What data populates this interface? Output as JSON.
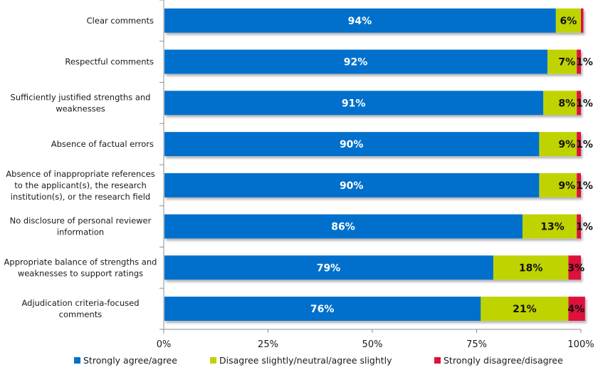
{
  "chart_data": {
    "type": "bar",
    "orientation": "horizontal",
    "stacked": true,
    "title": "",
    "xlabel": "",
    "ylabel": "",
    "xlim": [
      0,
      100
    ],
    "x_ticks": [
      "0%",
      "25%",
      "50%",
      "75%",
      "100%"
    ],
    "x_tick_values": [
      0,
      25,
      50,
      75,
      100
    ],
    "grid": false,
    "legend_position": "bottom",
    "categories": [
      [
        "Clear comments"
      ],
      [
        "Respectful comments"
      ],
      [
        "Sufficiently justified strengths and",
        "weaknesses"
      ],
      [
        "Absence of factual errors"
      ],
      [
        "Absence of inappropriate references",
        "to the applicant(s), the research",
        "institution(s), or the research field"
      ],
      [
        "No disclosure of personal reviewer",
        "information"
      ],
      [
        "Appropriate balance of strengths and",
        "weaknesses to support ratings"
      ],
      [
        "Adjudication criteria-focused",
        "comments"
      ]
    ],
    "series": [
      {
        "name": "Strongly agree/agree",
        "color": "#0070CC",
        "label_color": "#ffffff",
        "values": [
          94,
          92,
          91,
          90,
          90,
          86,
          79,
          76
        ],
        "labels": [
          "94%",
          "92%",
          "91%",
          "90%",
          "90%",
          "86%",
          "79%",
          "76%"
        ]
      },
      {
        "name": "Disagree slightly/neutral/agree slightly",
        "color": "#BFD300",
        "label_color": "#111111",
        "values": [
          6,
          7,
          8,
          9,
          9,
          13,
          18,
          21
        ],
        "labels": [
          "6%",
          "7%",
          "8%",
          "9%",
          "9%",
          "13%",
          "18%",
          "21%"
        ]
      },
      {
        "name": "Strongly disagree/disagree",
        "color": "#E0103C",
        "label_color": "#111111",
        "values": [
          0.6,
          1,
          1,
          1,
          1,
          1,
          3,
          4
        ],
        "labels": [
          "",
          "1%",
          "1%",
          "1%",
          "1%",
          "1%",
          "3%",
          "4%"
        ]
      }
    ]
  }
}
